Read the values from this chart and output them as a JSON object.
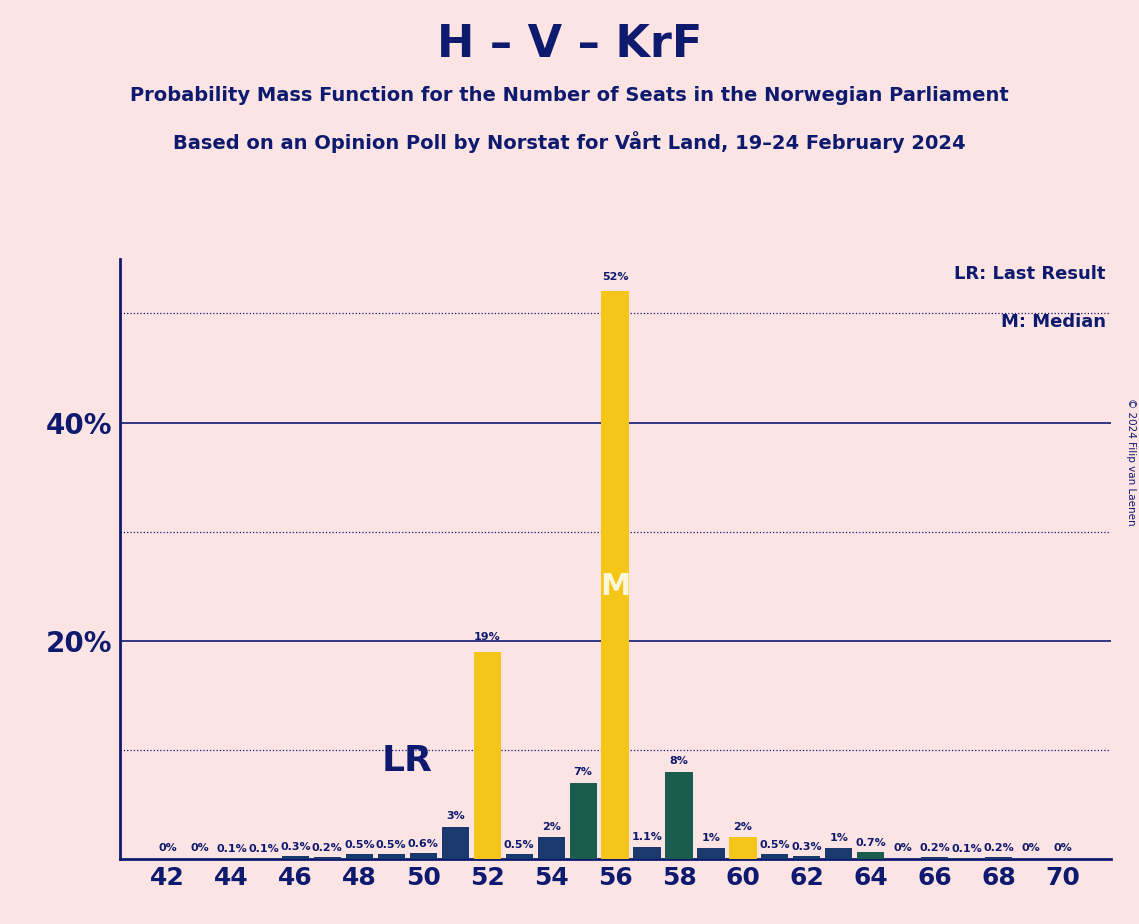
{
  "title": "H – V – KrF",
  "subtitle1": "Probability Mass Function for the Number of Seats in the Norwegian Parliament",
  "subtitle2": "Based on an Opinion Poll by Norstat for Vårt Land, 19–24 February 2024",
  "copyright": "© 2024 Filip van Laenen",
  "background_color": "#fce4e4",
  "title_color": "#0d1a6e",
  "bar_dark_blue": "#1a3a6e",
  "bar_yellow": "#f5c518",
  "bar_dark_green": "#1a5c4e",
  "lr_seat": 52,
  "median_seat": 56,
  "lr_label": "LR",
  "median_label": "M",
  "legend_lr": "LR: Last Result",
  "legend_m": "M: Median",
  "seats": [
    42,
    43,
    44,
    45,
    46,
    47,
    48,
    49,
    50,
    51,
    52,
    53,
    54,
    55,
    56,
    57,
    58,
    59,
    60,
    61,
    62,
    63,
    64,
    65,
    66,
    67,
    68,
    69,
    70
  ],
  "probabilities": [
    0.0,
    0.0,
    0.1,
    0.1,
    0.3,
    0.2,
    0.5,
    0.5,
    0.6,
    3.0,
    19.0,
    0.5,
    2.0,
    7.0,
    52.0,
    1.1,
    8.0,
    1.0,
    2.0,
    0.5,
    0.3,
    1.0,
    0.7,
    0.0,
    0.2,
    0.1,
    0.2,
    0.0,
    0.0
  ],
  "bar_types": [
    "b",
    "b",
    "b",
    "b",
    "b",
    "b",
    "b",
    "b",
    "b",
    "b",
    "y",
    "b",
    "b",
    "g",
    "y",
    "b",
    "g",
    "b",
    "y",
    "b",
    "b",
    "b",
    "g",
    "b",
    "b",
    "b",
    "b",
    "b",
    "b"
  ],
  "ylim": [
    0,
    55
  ],
  "solid_hlines": [
    20,
    40
  ],
  "dotted_hlines": [
    10,
    30,
    50
  ],
  "ytick_positions": [
    20,
    40
  ],
  "ytick_labels": [
    "20%",
    "40%"
  ],
  "xtick_positions": [
    42,
    44,
    46,
    48,
    50,
    52,
    54,
    56,
    58,
    60,
    62,
    64,
    66,
    68,
    70
  ],
  "xlim": [
    40.5,
    71.5
  ]
}
